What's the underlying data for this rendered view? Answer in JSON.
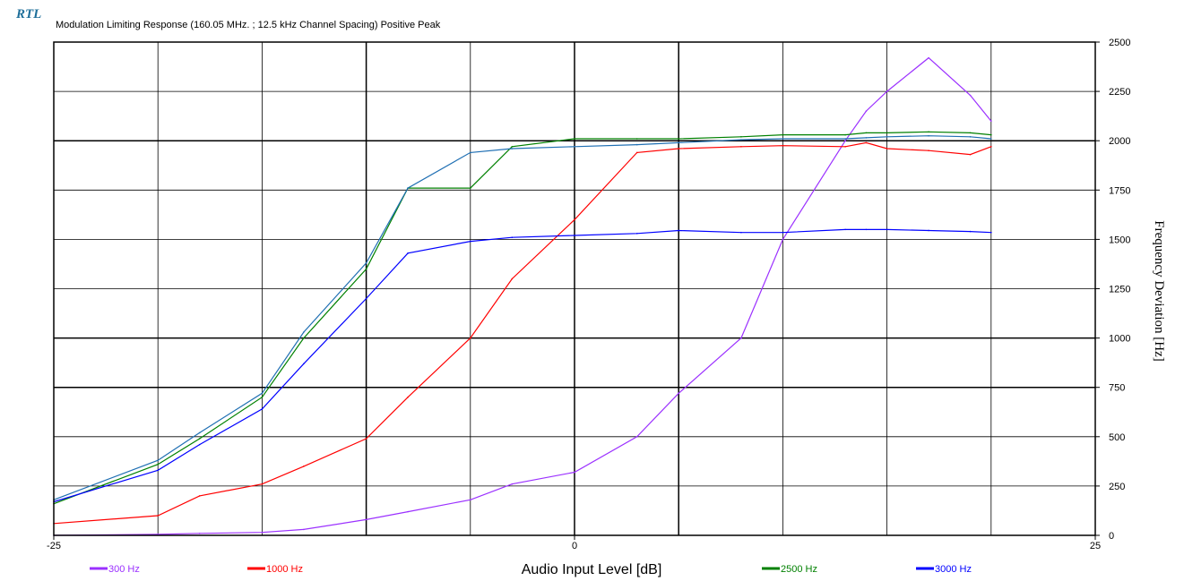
{
  "logo": "RTL",
  "chart_data": {
    "type": "line",
    "title": "Modulation Limiting Response (160.05 MHz. ; 12.5 kHz Channel Spacing) Positive Peak",
    "xlabel": "Audio Input Level [dB]",
    "ylabel": "Frequency Deviation [Hz]",
    "xlim": [
      -25,
      25
    ],
    "ylim": [
      0,
      2500
    ],
    "x_ticks": [
      {
        "value": -25,
        "label": "-25"
      },
      {
        "value": 0,
        "label": "0"
      },
      {
        "value": 25,
        "label": "25"
      }
    ],
    "y_ticks": [
      0,
      250,
      500,
      750,
      1000,
      1250,
      1500,
      1750,
      2000,
      2250,
      2500
    ],
    "grid": true,
    "legend_position": "bottom",
    "series": [
      {
        "name": "300 Hz",
        "color": "#9b30ff",
        "x": [
          -25,
          -20,
          -18,
          -15,
          -13,
          -10,
          -8,
          -5,
          -3,
          0,
          3,
          5,
          8,
          10,
          13,
          14,
          15,
          17,
          19,
          20
        ],
        "y": [
          0,
          5,
          10,
          15,
          30,
          80,
          120,
          180,
          260,
          320,
          500,
          720,
          1000,
          1500,
          2000,
          2150,
          2250,
          2420,
          2230,
          2100
        ]
      },
      {
        "name": "1000 Hz",
        "color": "#ff0000",
        "x": [
          -25,
          -20,
          -18,
          -15,
          -13,
          -10,
          -8,
          -5,
          -3,
          0,
          3,
          5,
          8,
          10,
          13,
          14,
          15,
          17,
          19,
          20
        ],
        "y": [
          60,
          100,
          200,
          260,
          350,
          490,
          700,
          1000,
          1300,
          1600,
          1940,
          1960,
          1970,
          1975,
          1970,
          1990,
          1960,
          1950,
          1930,
          1970
        ]
      },
      {
        "name": "2500 Hz",
        "color": "#008000",
        "x": [
          -25,
          -20,
          -18,
          -15,
          -13,
          -10,
          -8,
          -5,
          -3,
          0,
          3,
          5,
          8,
          10,
          13,
          14,
          15,
          17,
          19,
          20
        ],
        "y": [
          160,
          360,
          490,
          700,
          1000,
          1350,
          1760,
          1760,
          1970,
          2010,
          2010,
          2010,
          2020,
          2030,
          2030,
          2040,
          2040,
          2045,
          2040,
          2030
        ]
      },
      {
        "name": "2500 Hz",
        "color": "#1f6fb3",
        "x": [
          -25,
          -20,
          -18,
          -15,
          -13,
          -10,
          -8,
          -5,
          -3,
          0,
          3,
          5,
          8,
          10,
          13,
          14,
          15,
          17,
          19,
          20
        ],
        "y": [
          180,
          380,
          520,
          720,
          1030,
          1380,
          1760,
          1940,
          1960,
          1970,
          1980,
          1990,
          2005,
          2010,
          2010,
          2015,
          2020,
          2025,
          2020,
          2010
        ]
      },
      {
        "name": "3000 Hz",
        "color": "#0000ff",
        "x": [
          -25,
          -20,
          -18,
          -15,
          -13,
          -10,
          -8,
          -5,
          -3,
          0,
          3,
          5,
          8,
          10,
          13,
          14,
          15,
          17,
          19,
          20
        ],
        "y": [
          170,
          330,
          460,
          640,
          870,
          1200,
          1430,
          1490,
          1510,
          1520,
          1530,
          1545,
          1535,
          1535,
          1550,
          1550,
          1550,
          1545,
          1540,
          1535
        ]
      }
    ],
    "legend": [
      {
        "label": "300 Hz",
        "color": "#9b30ff"
      },
      {
        "label": "1000 Hz",
        "color": "#ff0000"
      },
      {
        "label": "2500 Hz",
        "color": "#008000"
      },
      {
        "label": "3000 Hz",
        "color": "#0000ff"
      }
    ]
  }
}
